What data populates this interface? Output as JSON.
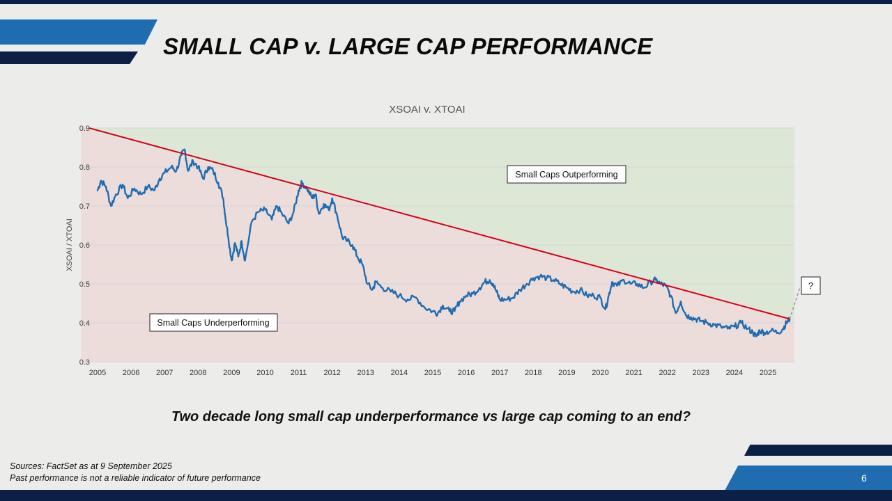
{
  "slide": {
    "title": "SMALL CAP v. LARGE CAP PERFORMANCE",
    "subtitle": "Two decade long small cap underperformance vs large cap coming to an end?",
    "sources": "Sources: FactSet as at 9 September 2025",
    "disclaimer": "Past performance is not a reliable indicator of future performance",
    "page_number": "6",
    "colors": {
      "navy": "#0c1f44",
      "blue": "#1f6cb0",
      "series": "#1f6cb0",
      "trendline": "#d9001b",
      "outperform_zone": "#dde7d6",
      "underperform_zone": "#ecdddb"
    }
  },
  "chart_data": {
    "type": "line",
    "title": "XSOAI v. XTOAI",
    "xlabel": "",
    "ylabel": "XSOAI / XTOAI",
    "xlim": [
      2005,
      2025.75
    ],
    "ylim": [
      0.3,
      0.9
    ],
    "y_ticks": [
      "0.3",
      "0.4",
      "0.5",
      "0.6",
      "0.7",
      "0.8",
      "0.9"
    ],
    "x_ticks": [
      "2005",
      "2006",
      "2007",
      "2008",
      "2009",
      "2010",
      "2011",
      "2012",
      "2013",
      "2014",
      "2015",
      "2016",
      "2017",
      "2018",
      "2019",
      "2020",
      "2021",
      "2022",
      "2023",
      "2024",
      "2025"
    ],
    "grid": true,
    "annotations": [
      "Small Caps Outperforming",
      "Small Caps Underperforming",
      "?"
    ],
    "trendline": {
      "x": [
        2004.75,
        2025.65
      ],
      "y": [
        0.9,
        0.41
      ]
    },
    "projection": {
      "x": [
        2025.65,
        2025.95
      ],
      "y": [
        0.41,
        0.49
      ]
    },
    "series": [
      {
        "x": [
          2005.0,
          2005.1,
          2005.25,
          2005.4,
          2005.55,
          2005.75,
          2005.9,
          2006.1,
          2006.3,
          2006.5,
          2006.7,
          2006.85,
          2007.0,
          2007.2,
          2007.35,
          2007.5,
          2007.6,
          2007.7,
          2007.85,
          2008.0,
          2008.15,
          2008.3,
          2008.45,
          2008.6,
          2008.75,
          2008.8,
          2008.9,
          2009.0,
          2009.1,
          2009.2,
          2009.3,
          2009.4,
          2009.6,
          2009.8,
          2010.0,
          2010.2,
          2010.35,
          2010.5,
          2010.7,
          2010.85,
          2011.0,
          2011.1,
          2011.25,
          2011.4,
          2011.5,
          2011.6,
          2011.75,
          2011.9,
          2012.0,
          2012.15,
          2012.3,
          2012.45,
          2012.6,
          2012.75,
          2012.9,
          2013.05,
          2013.2,
          2013.3,
          2013.5,
          2013.75,
          2014.0,
          2014.25,
          2014.5,
          2014.75,
          2015.0,
          2015.15,
          2015.3,
          2015.5,
          2015.65,
          2015.8,
          2016.0,
          2016.2,
          2016.4,
          2016.55,
          2016.7,
          2016.8,
          2016.9,
          2017.0,
          2017.2,
          2017.4,
          2017.6,
          2017.8,
          2018.0,
          2018.2,
          2018.4,
          2018.6,
          2018.8,
          2019.0,
          2019.2,
          2019.4,
          2019.6,
          2019.8,
          2020.0,
          2020.15,
          2020.25,
          2020.35,
          2020.5,
          2020.7,
          2020.9,
          2021.1,
          2021.3,
          2021.5,
          2021.65,
          2021.8,
          2021.95,
          2022.1,
          2022.25,
          2022.4,
          2022.55,
          2022.7,
          2022.85,
          2023.0,
          2023.2,
          2023.4,
          2023.6,
          2023.8,
          2024.0,
          2024.2,
          2024.4,
          2024.55,
          2024.65,
          2024.75,
          2024.9,
          2025.1,
          2025.3,
          2025.45,
          2025.55,
          2025.65
        ],
        "y": [
          0.74,
          0.765,
          0.75,
          0.7,
          0.73,
          0.755,
          0.72,
          0.745,
          0.73,
          0.75,
          0.74,
          0.77,
          0.785,
          0.8,
          0.79,
          0.83,
          0.845,
          0.79,
          0.815,
          0.8,
          0.77,
          0.8,
          0.79,
          0.76,
          0.72,
          0.68,
          0.62,
          0.56,
          0.605,
          0.57,
          0.61,
          0.56,
          0.66,
          0.685,
          0.69,
          0.665,
          0.7,
          0.68,
          0.655,
          0.685,
          0.74,
          0.76,
          0.745,
          0.72,
          0.73,
          0.68,
          0.705,
          0.69,
          0.72,
          0.675,
          0.62,
          0.61,
          0.6,
          0.57,
          0.55,
          0.5,
          0.485,
          0.505,
          0.49,
          0.48,
          0.47,
          0.46,
          0.465,
          0.44,
          0.43,
          0.425,
          0.445,
          0.43,
          0.43,
          0.455,
          0.47,
          0.475,
          0.49,
          0.505,
          0.51,
          0.5,
          0.48,
          0.46,
          0.46,
          0.465,
          0.485,
          0.5,
          0.515,
          0.52,
          0.515,
          0.51,
          0.5,
          0.49,
          0.48,
          0.485,
          0.47,
          0.47,
          0.465,
          0.435,
          0.47,
          0.505,
          0.495,
          0.51,
          0.5,
          0.5,
          0.49,
          0.505,
          0.51,
          0.5,
          0.495,
          0.47,
          0.425,
          0.455,
          0.42,
          0.415,
          0.41,
          0.405,
          0.4,
          0.395,
          0.39,
          0.385,
          0.39,
          0.4,
          0.385,
          0.375,
          0.365,
          0.38,
          0.375,
          0.38,
          0.375,
          0.385,
          0.4,
          0.41
        ]
      }
    ]
  }
}
